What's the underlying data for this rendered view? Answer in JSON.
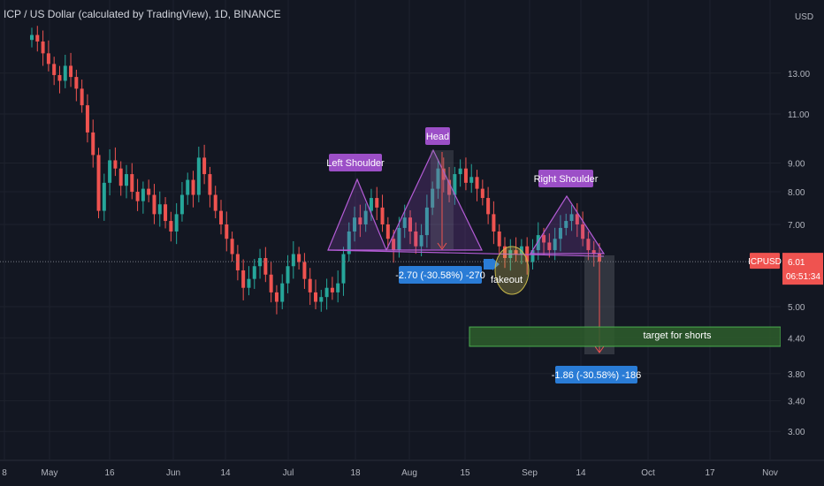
{
  "header": {
    "title": "ICP / US Dollar (calculated by TradingView), 1D, BINANCE"
  },
  "price_axis": {
    "currency": "USD",
    "ticks": [
      "13.00",
      "11.00",
      "9.00",
      "8.00",
      "7.00",
      "6.01",
      "5.00",
      "4.40",
      "3.80",
      "3.40",
      "3.00"
    ]
  },
  "time_axis": {
    "ticks": [
      "8",
      "May",
      "16",
      "Jun",
      "14",
      "Jul",
      "18",
      "Aug",
      "15",
      "Sep",
      "14",
      "Oct",
      "17",
      "Nov"
    ]
  },
  "last_price": {
    "symbol": "ICPUSD",
    "price": "6.01",
    "countdown": "06:51:34"
  },
  "annotations": {
    "left_shoulder": "Left Shoulder",
    "head": "Head",
    "right_shoulder": "Right Shoulder",
    "fakeout": "fakeout",
    "measure_head": "-2.70 (-30.58%) -270",
    "measure_target": "-1.86 (-30.58%) -186",
    "target_box": "target for shorts"
  },
  "colors": {
    "bull": "#26a69a",
    "bear": "#ef5350",
    "label_bg": "#9c4fc7",
    "measure": "#2a7cd6",
    "target_box": "#2e5e2b",
    "background": "#131722"
  },
  "chart_data": {
    "type": "candlestick",
    "title": "ICP / US Dollar (calculated by TradingView), 1D, BINANCE",
    "y_scale": "log",
    "ylim": [
      2.9,
      15.5
    ],
    "ylabel": "USD",
    "interval": "1D",
    "approx_ohlc_close_series": [
      15.2,
      14.8,
      14.1,
      13.5,
      12.9,
      12.6,
      13.4,
      12.8,
      12.2,
      11.4,
      10.2,
      9.3,
      7.4,
      8.3,
      9.1,
      8.8,
      8.2,
      8.6,
      8.0,
      7.7,
      8.1,
      7.9,
      7.3,
      7.6,
      7.1,
      6.8,
      7.3,
      7.9,
      8.4,
      7.9,
      9.2,
      8.6,
      7.9,
      7.4,
      7.0,
      6.6,
      6.2,
      5.8,
      5.4,
      5.6,
      5.9,
      6.1,
      5.7,
      5.3,
      5.1,
      5.5,
      5.9,
      6.2,
      6.0,
      5.6,
      5.3,
      5.1,
      5.2,
      5.4,
      5.3,
      5.5,
      6.2,
      6.8,
      7.2,
      7.0,
      7.4,
      7.8,
      7.5,
      7.0,
      6.6,
      6.3,
      6.9,
      7.2,
      6.8,
      6.4,
      6.7,
      7.5,
      8.1,
      8.8,
      8.4,
      7.9,
      8.6,
      8.8,
      8.3,
      8.5,
      8.1,
      7.8,
      7.3,
      6.8,
      6.4,
      6.1,
      6.3,
      6.2,
      6.4,
      6.0,
      6.3,
      6.7,
      6.5,
      6.3,
      6.6,
      6.9,
      7.1,
      7.3,
      7.0,
      6.6,
      6.3,
      6.2,
      6.01
    ],
    "reference_line": 6.01,
    "target_zone": [
      4.25,
      4.6
    ],
    "measurements": [
      {
        "label": "-2.70 (-30.58%) -270",
        "from": 8.83,
        "to": 6.13
      },
      {
        "label": "-1.86 (-30.58%) -186",
        "from": 6.08,
        "to": 4.22
      }
    ]
  }
}
